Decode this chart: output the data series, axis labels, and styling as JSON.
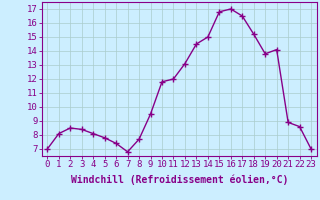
{
  "x": [
    0,
    1,
    2,
    3,
    4,
    5,
    6,
    7,
    8,
    9,
    10,
    11,
    12,
    13,
    14,
    15,
    16,
    17,
    18,
    19,
    20,
    21,
    22,
    23
  ],
  "y": [
    7.0,
    8.1,
    8.5,
    8.4,
    8.1,
    7.8,
    7.4,
    6.8,
    7.7,
    9.5,
    11.8,
    12.0,
    13.1,
    14.5,
    15.0,
    16.8,
    17.0,
    16.5,
    15.2,
    13.8,
    14.1,
    8.9,
    8.6,
    7.0
  ],
  "line_color": "#880088",
  "marker": "+",
  "marker_size": 4,
  "bg_color": "#cceeff",
  "grid_color": "#aacccc",
  "xlabel": "Windchill (Refroidissement éolien,°C)",
  "xlim": [
    -0.5,
    23.5
  ],
  "ylim": [
    6.5,
    17.5
  ],
  "yticks": [
    7,
    8,
    9,
    10,
    11,
    12,
    13,
    14,
    15,
    16,
    17
  ],
  "xticks": [
    0,
    1,
    2,
    3,
    4,
    5,
    6,
    7,
    8,
    9,
    10,
    11,
    12,
    13,
    14,
    15,
    16,
    17,
    18,
    19,
    20,
    21,
    22,
    23
  ],
  "tick_label_fontsize": 6.5,
  "xlabel_fontsize": 7.0,
  "line_color_hex": "#880088",
  "axis_color": "#880088",
  "linewidth": 1.0,
  "marker_linewidth": 1.0
}
